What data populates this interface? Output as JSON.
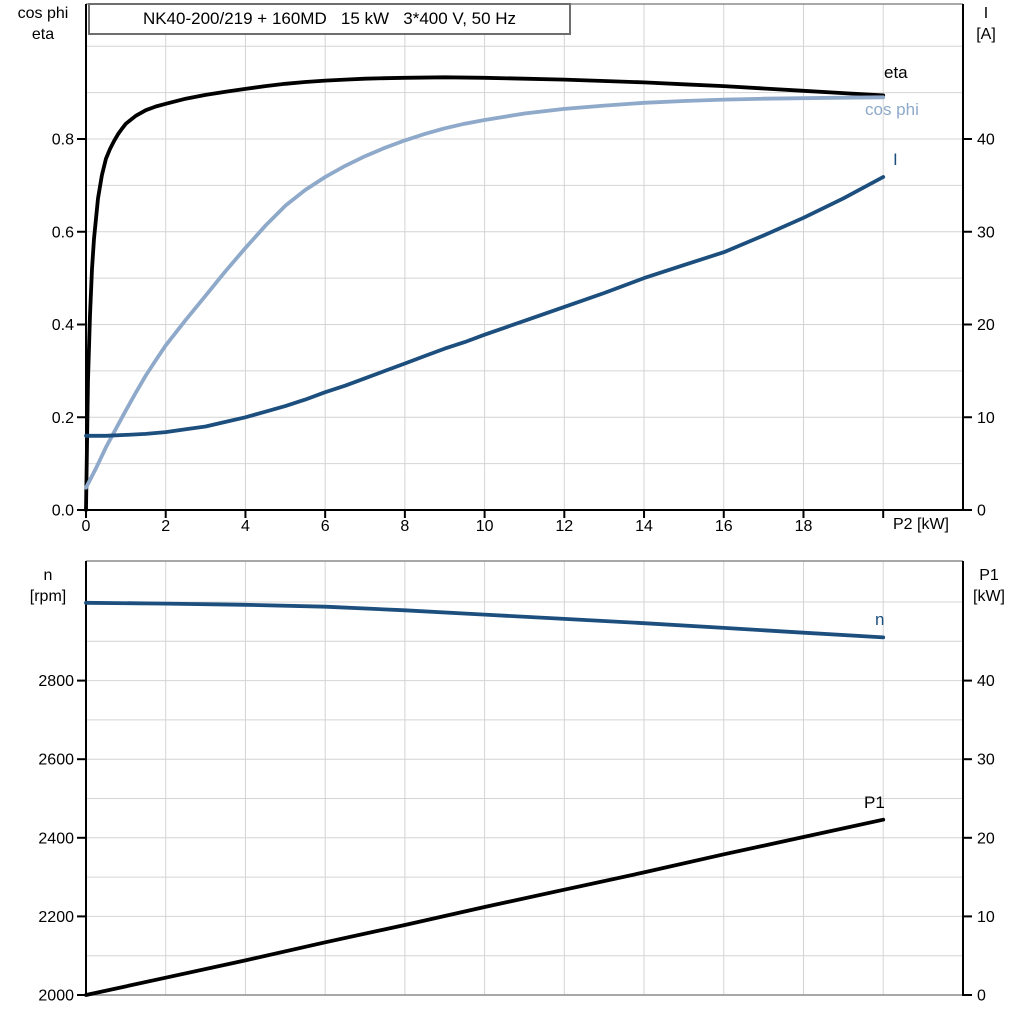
{
  "title_box": {
    "text": "NK40-200/219 + 160MD   15 kW   3*400 V, 50 Hz"
  },
  "colors": {
    "black_curve": "#000000",
    "cos_phi_curve": "#8ea9c9",
    "dark_blue_curve": "#1d4f7e",
    "grid": "#d4d4d4",
    "frame": "#8c8c8c",
    "axis": "#000000",
    "text": "#000000"
  },
  "chart_data": [
    {
      "type": "line",
      "position": "top",
      "x_axis": {
        "label": "P2 [kW]",
        "min": 0,
        "max": 22,
        "tick_values": [
          0,
          2,
          4,
          6,
          8,
          10,
          12,
          14,
          16,
          18,
          20
        ],
        "tick_labels": [
          "0",
          "2",
          "4",
          "6",
          "8",
          "10",
          "12",
          "14",
          "16",
          "18",
          ""
        ],
        "grid_start": 2,
        "grid_step": 2,
        "grid_end": 20
      },
      "y_left": {
        "label_lines": [
          "cos phi",
          "eta"
        ],
        "min": 0,
        "max": 1.02,
        "tick_values": [
          0,
          0.2,
          0.4,
          0.6,
          0.8
        ],
        "tick_labels": [
          "0.0",
          "0.2",
          "0.4",
          "0.6",
          "0.8"
        ],
        "grid_start": 0.1,
        "grid_step": 0.1,
        "grid_end": 1.0
      },
      "y_right": {
        "label_lines": [
          "I",
          "[A]"
        ],
        "min": 0,
        "max": 51,
        "tick_values": [
          0,
          10,
          20,
          30,
          40
        ],
        "tick_labels": [
          "0",
          "10",
          "20",
          "30",
          "40"
        ]
      },
      "series": [
        {
          "name": "eta",
          "axis": "left",
          "color": "#000000",
          "points": [
            [
              0,
              0
            ],
            [
              0.05,
              0.28
            ],
            [
              0.1,
              0.42
            ],
            [
              0.15,
              0.52
            ],
            [
              0.2,
              0.585
            ],
            [
              0.3,
              0.672
            ],
            [
              0.4,
              0.722
            ],
            [
              0.5,
              0.757
            ],
            [
              0.6,
              0.778
            ],
            [
              0.7,
              0.795
            ],
            [
              0.8,
              0.81
            ],
            [
              0.9,
              0.822
            ],
            [
              1,
              0.833
            ],
            [
              1.25,
              0.85
            ],
            [
              1.5,
              0.862
            ],
            [
              1.75,
              0.87
            ],
            [
              2,
              0.876
            ],
            [
              2.5,
              0.887
            ],
            [
              3,
              0.895
            ],
            [
              3.5,
              0.902
            ],
            [
              4,
              0.908
            ],
            [
              4.5,
              0.914
            ],
            [
              5,
              0.919
            ],
            [
              5.5,
              0.923
            ],
            [
              6,
              0.926
            ],
            [
              6.5,
              0.928
            ],
            [
              7,
              0.93
            ],
            [
              7.5,
              0.931
            ],
            [
              8,
              0.932
            ],
            [
              9,
              0.933
            ],
            [
              10,
              0.932
            ],
            [
              11,
              0.93
            ],
            [
              12,
              0.928
            ],
            [
              13,
              0.925
            ],
            [
              14,
              0.922
            ],
            [
              15,
              0.918
            ],
            [
              16,
              0.914
            ],
            [
              17,
              0.909
            ],
            [
              18,
              0.904
            ],
            [
              19,
              0.899
            ],
            [
              20,
              0.894
            ]
          ]
        },
        {
          "name": "cos phi",
          "axis": "left",
          "color": "#8ea9c9",
          "points": [
            [
              0,
              0.048
            ],
            [
              0.25,
              0.09
            ],
            [
              0.5,
              0.135
            ],
            [
              0.75,
              0.175
            ],
            [
              1,
              0.215
            ],
            [
              1.25,
              0.253
            ],
            [
              1.5,
              0.29
            ],
            [
              1.75,
              0.323
            ],
            [
              2,
              0.355
            ],
            [
              2.5,
              0.41
            ],
            [
              3,
              0.462
            ],
            [
              3.5,
              0.515
            ],
            [
              4,
              0.565
            ],
            [
              4.5,
              0.613
            ],
            [
              5,
              0.656
            ],
            [
              5.5,
              0.69
            ],
            [
              6,
              0.718
            ],
            [
              6.5,
              0.742
            ],
            [
              7,
              0.763
            ],
            [
              7.5,
              0.781
            ],
            [
              8,
              0.797
            ],
            [
              8.5,
              0.811
            ],
            [
              9,
              0.823
            ],
            [
              9.5,
              0.833
            ],
            [
              10,
              0.841
            ],
            [
              11,
              0.855
            ],
            [
              12,
              0.865
            ],
            [
              13,
              0.872
            ],
            [
              14,
              0.878
            ],
            [
              15,
              0.882
            ],
            [
              16,
              0.885
            ],
            [
              17,
              0.887
            ],
            [
              18,
              0.888
            ],
            [
              19,
              0.889
            ],
            [
              20,
              0.89
            ]
          ]
        },
        {
          "name": "I",
          "axis": "right",
          "color": "#1d4f7e",
          "points": [
            [
              0,
              8
            ],
            [
              0.5,
              8
            ],
            [
              1,
              8.1
            ],
            [
              1.5,
              8.2
            ],
            [
              2,
              8.4
            ],
            [
              2.5,
              8.7
            ],
            [
              3,
              9
            ],
            [
              3.5,
              9.5
            ],
            [
              4,
              10
            ],
            [
              4.5,
              10.6
            ],
            [
              5,
              11.2
            ],
            [
              5.5,
              11.9
            ],
            [
              6,
              12.7
            ],
            [
              6.5,
              13.4
            ],
            [
              7,
              14.2
            ],
            [
              7.5,
              15
            ],
            [
              8,
              15.8
            ],
            [
              8.5,
              16.6
            ],
            [
              9,
              17.4
            ],
            [
              9.5,
              18.1
            ],
            [
              10,
              18.9
            ],
            [
              11,
              20.4
            ],
            [
              12,
              21.9
            ],
            [
              13,
              23.4
            ],
            [
              14,
              25
            ],
            [
              15,
              26.4
            ],
            [
              16,
              27.8
            ],
            [
              17,
              29.6
            ],
            [
              18,
              31.5
            ],
            [
              19,
              33.6
            ],
            [
              20,
              35.9
            ]
          ]
        }
      ]
    },
    {
      "type": "line",
      "position": "bottom",
      "x_axis": {
        "label": "",
        "min": 0,
        "max": 22,
        "tick_values": [],
        "tick_labels": [],
        "grid_start": 2,
        "grid_step": 2,
        "grid_end": 20
      },
      "y_left": {
        "label_lines": [
          "n",
          "[rpm]"
        ],
        "min": 2000,
        "max": 3100,
        "tick_values": [
          2000,
          2200,
          2400,
          2600,
          2800
        ],
        "tick_labels": [
          "2000",
          "2200",
          "2400",
          "2600",
          "2800"
        ],
        "grid_start": 2100,
        "grid_step": 100,
        "grid_end": 3000
      },
      "y_right": {
        "label_lines": [
          "P1",
          "[kW]"
        ],
        "min": 0,
        "max": 55,
        "tick_values": [
          0,
          10,
          20,
          30,
          40
        ],
        "tick_labels": [
          "0",
          "10",
          "20",
          "30",
          "40"
        ]
      },
      "series": [
        {
          "name": "n",
          "axis": "left",
          "color": "#1d4f7e",
          "points": [
            [
              0,
              2998
            ],
            [
              2,
              2996
            ],
            [
              4,
              2993
            ],
            [
              6,
              2988
            ],
            [
              8,
              2979
            ],
            [
              10,
              2968
            ],
            [
              12,
              2957
            ],
            [
              14,
              2946
            ],
            [
              16,
              2934
            ],
            [
              18,
              2922
            ],
            [
              20,
              2910
            ]
          ]
        },
        {
          "name": "P1",
          "axis": "left_is_not_used",
          "color": "#000000",
          "points": []
        },
        {
          "name": "P1_data",
          "axis": "right",
          "color": "#000000",
          "points": [
            [
              0,
              0
            ],
            [
              2,
              2.2
            ],
            [
              4,
              4.4
            ],
            [
              6,
              6.7
            ],
            [
              8,
              8.9
            ],
            [
              10,
              11.2
            ],
            [
              12,
              13.4
            ],
            [
              14,
              15.6
            ],
            [
              16,
              17.9
            ],
            [
              18,
              20.1
            ],
            [
              20,
              22.3
            ]
          ]
        }
      ]
    }
  ]
}
